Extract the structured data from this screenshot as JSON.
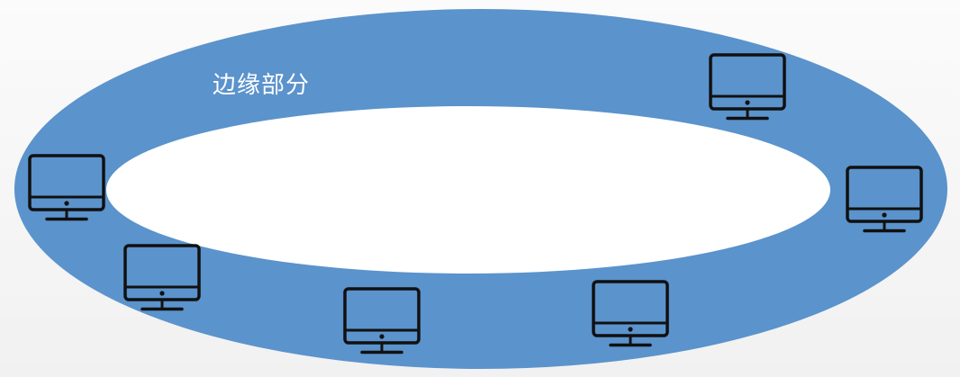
{
  "diagram": {
    "ring_label": "边缘部分",
    "ring_color": "#5b93cc",
    "hole_color": "#ffffff",
    "monitor_color": "#111111",
    "nodes": [
      {
        "name": "monitor-top-right",
        "icon": "computer-monitor-icon"
      },
      {
        "name": "monitor-left",
        "icon": "computer-monitor-icon"
      },
      {
        "name": "monitor-bottom-left",
        "icon": "computer-monitor-icon"
      },
      {
        "name": "monitor-bottom-center-left",
        "icon": "computer-monitor-icon"
      },
      {
        "name": "monitor-bottom-center-right",
        "icon": "computer-monitor-icon"
      },
      {
        "name": "monitor-right",
        "icon": "computer-monitor-icon"
      }
    ]
  }
}
